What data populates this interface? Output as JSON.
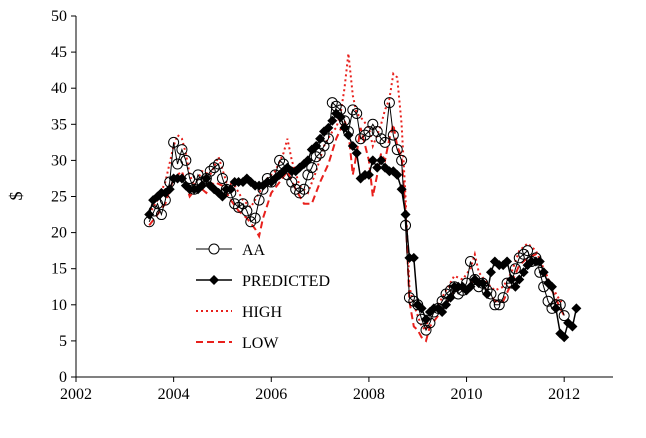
{
  "chart_data": {
    "type": "line",
    "title": "",
    "xlabel": "",
    "ylabel": "$",
    "xlim": [
      2002,
      2013
    ],
    "ylim": [
      0,
      50
    ],
    "x_ticks": [
      2002,
      2004,
      2006,
      2008,
      2010,
      2012
    ],
    "y_ticks": [
      0,
      5,
      10,
      15,
      20,
      25,
      30,
      35,
      40,
      45,
      50
    ],
    "grid": false,
    "legend_position": "lower-left inside plot",
    "series": [
      {
        "name": "AA",
        "style": "line-open-circle",
        "color": "#000000",
        "x": [
          2003.5,
          2003.6,
          2003.67,
          2003.75,
          2003.83,
          2003.92,
          2004.0,
          2004.08,
          2004.17,
          2004.25,
          2004.33,
          2004.42,
          2004.5,
          2004.58,
          2004.67,
          2004.75,
          2004.83,
          2004.92,
          2005.0,
          2005.08,
          2005.17,
          2005.25,
          2005.33,
          2005.42,
          2005.5,
          2005.58,
          2005.67,
          2005.75,
          2005.83,
          2005.92,
          2006.0,
          2006.08,
          2006.17,
          2006.25,
          2006.33,
          2006.42,
          2006.5,
          2006.58,
          2006.67,
          2006.75,
          2006.83,
          2006.92,
          2007.0,
          2007.08,
          2007.17,
          2007.25,
          2007.33,
          2007.42,
          2007.5,
          2007.58,
          2007.67,
          2007.75,
          2007.83,
          2007.92,
          2008.0,
          2008.08,
          2008.17,
          2008.25,
          2008.33,
          2008.42,
          2008.5,
          2008.58,
          2008.67,
          2008.75,
          2008.83,
          2008.92,
          2009.0,
          2009.08,
          2009.17,
          2009.25,
          2009.33,
          2009.42,
          2009.5,
          2009.58,
          2009.67,
          2009.75,
          2009.83,
          2009.92,
          2010.0,
          2010.08,
          2010.17,
          2010.25,
          2010.33,
          2010.42,
          2010.5,
          2010.58,
          2010.67,
          2010.75,
          2010.83,
          2010.92,
          2011.0,
          2011.08,
          2011.17,
          2011.25,
          2011.33,
          2011.42,
          2011.5,
          2011.58,
          2011.67,
          2011.75,
          2011.83,
          2011.92,
          2012.0
        ],
        "y": [
          21.5,
          23,
          24,
          22.5,
          24.5,
          27,
          32.5,
          29.5,
          31.5,
          30,
          27.5,
          26,
          28,
          27,
          27.5,
          28.5,
          29,
          29.5,
          27.5,
          26,
          25.5,
          24,
          23.5,
          24,
          23,
          21.5,
          22,
          24.5,
          26,
          27.5,
          27,
          28,
          30,
          29.5,
          28,
          27,
          26,
          25.5,
          26,
          28,
          29,
          30.5,
          31,
          32,
          33,
          38,
          37.5,
          37,
          35.5,
          34,
          37,
          36.5,
          33,
          33.5,
          34,
          35,
          34,
          33,
          32.5,
          38,
          33.5,
          31.5,
          30,
          21,
          11,
          10.5,
          10,
          8,
          6.5,
          7.5,
          9,
          9.5,
          10.5,
          11.5,
          12,
          12.5,
          11.5,
          12,
          13,
          16,
          13.5,
          12.5,
          13,
          12,
          11.5,
          10,
          10,
          11,
          13,
          13,
          15,
          16.5,
          17,
          17.5,
          16,
          16.5,
          14.5,
          12.5,
          10.5,
          9.5,
          10,
          10,
          8.5
        ]
      },
      {
        "name": "PREDICTED",
        "style": "line-filled-diamond",
        "color": "#000000",
        "x": [
          2003.5,
          2003.58,
          2003.67,
          2003.75,
          2003.83,
          2003.92,
          2004.0,
          2004.08,
          2004.17,
          2004.25,
          2004.33,
          2004.42,
          2004.5,
          2004.58,
          2004.67,
          2004.75,
          2004.83,
          2004.92,
          2005.0,
          2005.08,
          2005.17,
          2005.25,
          2005.33,
          2005.42,
          2005.5,
          2005.58,
          2005.67,
          2005.75,
          2005.83,
          2005.92,
          2006.0,
          2006.08,
          2006.17,
          2006.25,
          2006.33,
          2006.42,
          2006.5,
          2006.58,
          2006.67,
          2006.75,
          2006.83,
          2006.92,
          2007.0,
          2007.08,
          2007.17,
          2007.25,
          2007.33,
          2007.42,
          2007.5,
          2007.58,
          2007.67,
          2007.75,
          2007.83,
          2007.92,
          2008.0,
          2008.08,
          2008.17,
          2008.25,
          2008.33,
          2008.42,
          2008.5,
          2008.58,
          2008.67,
          2008.75,
          2008.83,
          2008.92,
          2009.0,
          2009.08,
          2009.17,
          2009.25,
          2009.33,
          2009.42,
          2009.5,
          2009.58,
          2009.67,
          2009.75,
          2009.83,
          2009.92,
          2010.0,
          2010.08,
          2010.17,
          2010.25,
          2010.33,
          2010.42,
          2010.5,
          2010.58,
          2010.67,
          2010.75,
          2010.83,
          2010.92,
          2011.0,
          2011.08,
          2011.17,
          2011.25,
          2011.33,
          2011.42,
          2011.5,
          2011.58,
          2011.67,
          2011.75,
          2011.83,
          2011.92,
          2012.0,
          2012.08,
          2012.17,
          2012.25
        ],
        "y": [
          22.5,
          24.5,
          25,
          25.5,
          25.5,
          26,
          27.5,
          27.5,
          27.5,
          26.5,
          26,
          26,
          26,
          26.5,
          27.5,
          26.5,
          26,
          25.5,
          25,
          26,
          26,
          27,
          27,
          27,
          27.5,
          27,
          26.5,
          26.5,
          26.5,
          27,
          27,
          27.5,
          28,
          28.5,
          29,
          28.5,
          28.5,
          29,
          29.5,
          30,
          31.5,
          32,
          33,
          34,
          34.5,
          35.5,
          36.5,
          36,
          34.5,
          33.5,
          32,
          31,
          27.5,
          28,
          28,
          30,
          29,
          30,
          29,
          28.5,
          28.5,
          28,
          26,
          22.5,
          16.5,
          16.5,
          10,
          9.5,
          8,
          9,
          9.5,
          9.5,
          9,
          10,
          11,
          12.5,
          12.5,
          12.5,
          12,
          12.5,
          13.5,
          13,
          13,
          11.5,
          14.5,
          16,
          15.5,
          15.5,
          16,
          13.5,
          12.5,
          13.5,
          14.5,
          15.5,
          16,
          16,
          16,
          14.5,
          13,
          12.5,
          9.5,
          6,
          5.5,
          7.5,
          7,
          9.5
        ]
      },
      {
        "name": "HIGH",
        "style": "dotted",
        "color": "#e8201c",
        "x": [
          2003.5,
          2003.67,
          2003.83,
          2004.0,
          2004.08,
          2004.17,
          2004.25,
          2004.33,
          2004.42,
          2004.58,
          2004.75,
          2004.92,
          2005.08,
          2005.25,
          2005.42,
          2005.58,
          2005.75,
          2005.92,
          2006.08,
          2006.25,
          2006.33,
          2006.42,
          2006.58,
          2006.75,
          2006.92,
          2007.08,
          2007.25,
          2007.33,
          2007.42,
          2007.5,
          2007.58,
          2007.67,
          2007.75,
          2007.83,
          2008.0,
          2008.08,
          2008.17,
          2008.25,
          2008.33,
          2008.42,
          2008.5,
          2008.58,
          2008.67,
          2008.75,
          2008.83,
          2008.92,
          2009.0,
          2009.08,
          2009.17,
          2009.25,
          2009.42,
          2009.58,
          2009.75,
          2009.92,
          2010.08,
          2010.17,
          2010.25,
          2010.42,
          2010.58,
          2010.75,
          2010.92,
          2011.08,
          2011.25,
          2011.42,
          2011.58,
          2011.75,
          2011.92,
          2012.0
        ],
        "y": [
          22.5,
          24.5,
          27,
          32,
          33.5,
          33,
          31,
          28,
          26.5,
          28.5,
          28,
          30.5,
          27,
          26.5,
          24.5,
          23.5,
          25.5,
          27.5,
          28.5,
          31,
          33,
          30,
          26.5,
          25.5,
          28.5,
          32,
          34,
          34.5,
          36.5,
          40,
          44.8,
          39,
          36.5,
          36,
          34.5,
          32,
          33.5,
          35,
          37,
          38.5,
          42,
          41.5,
          35,
          25,
          12.5,
          10,
          8.5,
          7,
          6.5,
          9.5,
          10,
          12,
          14,
          13.5,
          15,
          17,
          14.5,
          13,
          12,
          12.5,
          14.5,
          17.5,
          18.5,
          17.5,
          15,
          12.5,
          10.5,
          10.5
        ]
      },
      {
        "name": "LOW",
        "style": "dashed",
        "color": "#e8201c",
        "x": [
          2003.5,
          2003.67,
          2003.83,
          2004.0,
          2004.17,
          2004.33,
          2004.5,
          2004.67,
          2004.83,
          2005.0,
          2005.17,
          2005.33,
          2005.5,
          2005.67,
          2005.75,
          2005.83,
          2006.0,
          2006.17,
          2006.33,
          2006.5,
          2006.67,
          2006.83,
          2007.0,
          2007.17,
          2007.33,
          2007.5,
          2007.58,
          2007.67,
          2007.75,
          2007.83,
          2008.0,
          2008.08,
          2008.17,
          2008.25,
          2008.33,
          2008.42,
          2008.5,
          2008.58,
          2008.67,
          2008.75,
          2008.83,
          2008.92,
          2009.0,
          2009.08,
          2009.17,
          2009.25,
          2009.42,
          2009.58,
          2009.75,
          2009.92,
          2010.08,
          2010.25,
          2010.42,
          2010.58,
          2010.75,
          2010.92,
          2011.08,
          2011.25,
          2011.42,
          2011.58,
          2011.75,
          2011.92,
          2012.0
        ],
        "y": [
          21,
          22.5,
          24,
          27.5,
          28.5,
          25,
          26.5,
          25.5,
          27,
          26.5,
          24.5,
          23,
          22,
          20.5,
          19.5,
          22,
          25.5,
          27,
          28.5,
          26,
          24,
          24,
          27,
          29.5,
          33,
          35.5,
          34,
          28,
          31,
          34.5,
          30,
          25,
          28,
          31,
          30,
          33,
          35,
          32,
          30.5,
          23,
          10.5,
          7,
          6.5,
          5.5,
          5,
          7,
          8.5,
          10,
          12,
          12,
          13,
          13.5,
          12,
          10.5,
          10.5,
          13,
          15.5,
          16.5,
          17,
          15,
          12,
          9.5,
          8.5
        ]
      }
    ]
  }
}
